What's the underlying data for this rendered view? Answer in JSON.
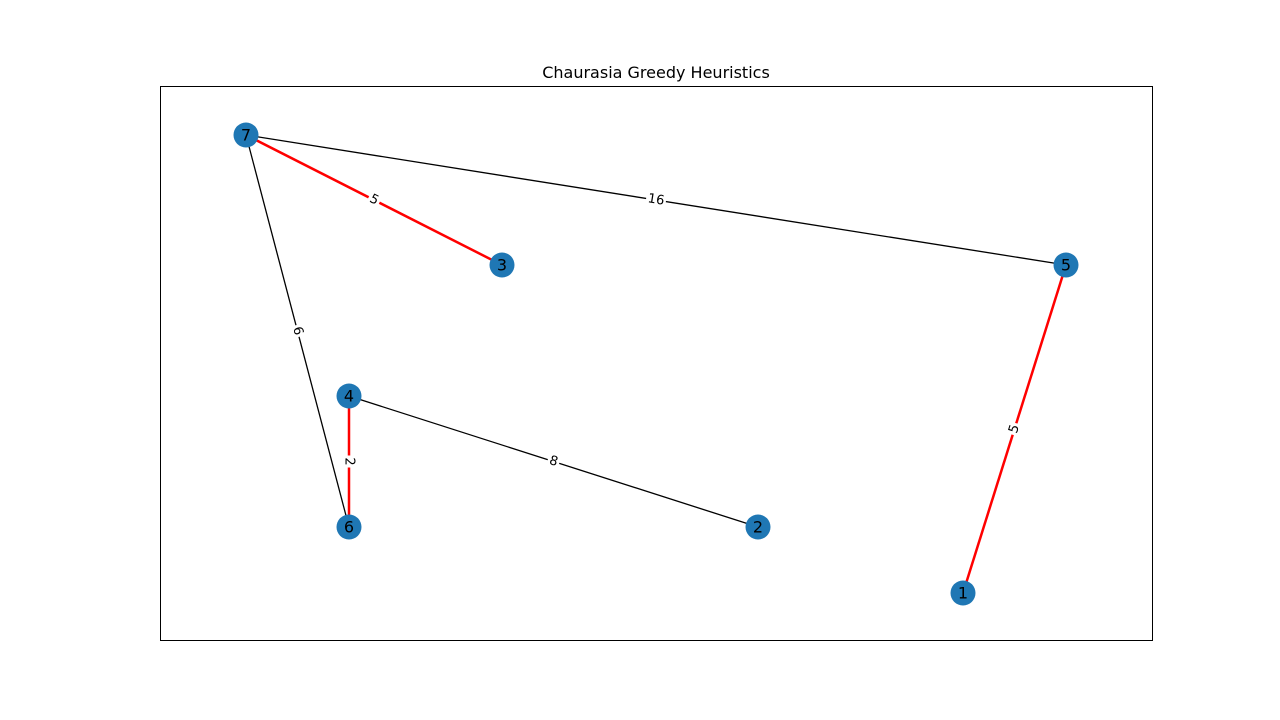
{
  "title": "Chaurasia Greedy Heuristics",
  "colors": {
    "node": "#1f77b4",
    "edge_default": "#000000",
    "edge_highlight": "#ff0000",
    "frame": "#000000"
  },
  "nodes": [
    {
      "id": "7",
      "label": "7"
    },
    {
      "id": "3",
      "label": "3"
    },
    {
      "id": "5",
      "label": "5"
    },
    {
      "id": "4",
      "label": "4"
    },
    {
      "id": "6",
      "label": "6"
    },
    {
      "id": "2",
      "label": "2"
    },
    {
      "id": "1",
      "label": "1"
    }
  ],
  "edges": [
    {
      "source": "7",
      "target": "3",
      "weight": "5",
      "highlighted": true
    },
    {
      "source": "7",
      "target": "5",
      "weight": "16",
      "highlighted": false
    },
    {
      "source": "7",
      "target": "6",
      "weight": "6",
      "highlighted": false
    },
    {
      "source": "4",
      "target": "6",
      "weight": "2",
      "highlighted": true
    },
    {
      "source": "4",
      "target": "2",
      "weight": "8",
      "highlighted": false
    },
    {
      "source": "5",
      "target": "1",
      "weight": "5",
      "highlighted": true
    }
  ]
}
